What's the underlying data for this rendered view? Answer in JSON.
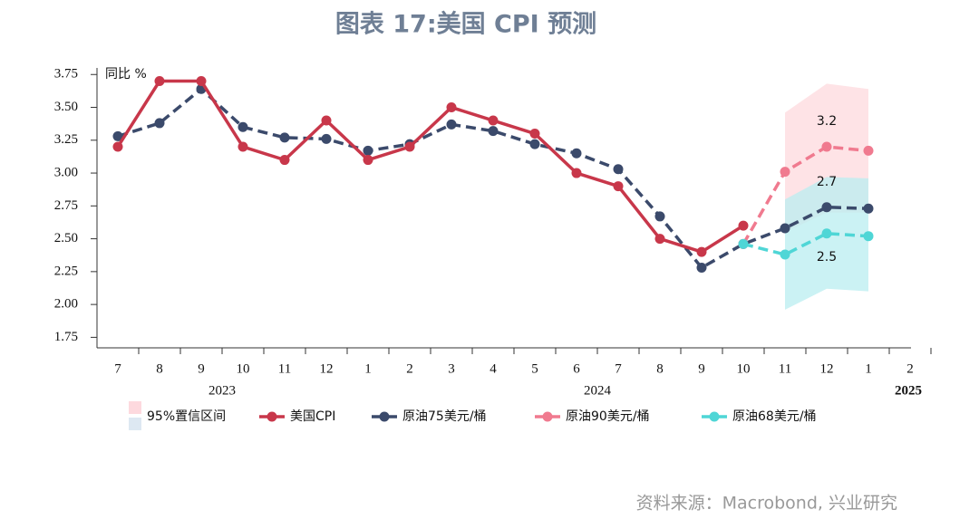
{
  "chart_data": {
    "type": "line",
    "title": "图表 17:美国 CPI 预测",
    "y_axis_label": "同比 %",
    "source": "资料来源：Macrobond, 兴业研究",
    "categories": [
      "7",
      "8",
      "9",
      "10",
      "11",
      "12",
      "1",
      "2",
      "3",
      "4",
      "5",
      "6",
      "7",
      "8",
      "9",
      "10",
      "11",
      "12",
      "1",
      "2"
    ],
    "groups": [
      {
        "label": "2023",
        "categories": 6
      },
      {
        "label": "2024",
        "categories": 12
      },
      {
        "label": "2025",
        "categories": 2
      }
    ],
    "ylim": [
      1.67,
      3.8
    ],
    "yticks": [
      {
        "value": 1.75,
        "label": "1.75"
      },
      {
        "value": 2,
        "label": "2.00"
      },
      {
        "value": 2.25,
        "label": "2.25"
      },
      {
        "value": 2.5,
        "label": "2.50"
      },
      {
        "value": 2.75,
        "label": "2.75"
      },
      {
        "value": 3,
        "label": "3.00"
      },
      {
        "value": 3.25,
        "label": "3.25"
      },
      {
        "value": 3.5,
        "label": "3.50"
      },
      {
        "value": 3.75,
        "label": "3.75"
      }
    ],
    "band_legend": "95%置信区间",
    "bands": [
      {
        "color": "#fdd9de",
        "lower": [
          null,
          null,
          null,
          null,
          null,
          null,
          null,
          null,
          null,
          null,
          null,
          null,
          null,
          null,
          null,
          null,
          2.55,
          2.7,
          2.7,
          null
        ],
        "upper": [
          null,
          null,
          null,
          null,
          null,
          null,
          null,
          null,
          null,
          null,
          null,
          null,
          null,
          null,
          null,
          null,
          3.46,
          3.68,
          3.64,
          null
        ]
      },
      {
        "color": "#b9eef0",
        "lower": [
          null,
          null,
          null,
          null,
          null,
          null,
          null,
          null,
          null,
          null,
          null,
          null,
          null,
          null,
          null,
          null,
          1.96,
          2.12,
          2.1,
          null
        ],
        "upper": [
          null,
          null,
          null,
          null,
          null,
          null,
          null,
          null,
          null,
          null,
          null,
          null,
          null,
          null,
          null,
          null,
          2.8,
          2.97,
          2.96,
          null
        ]
      }
    ],
    "series": [
      {
        "name": "美国CPI",
        "color": "#c8374a",
        "dashed": false,
        "values": [
          3.2,
          3.7,
          3.7,
          3.2,
          3.1,
          3.4,
          3.1,
          3.2,
          3.5,
          3.4,
          3.3,
          3.0,
          2.9,
          2.5,
          2.4,
          2.6,
          null,
          null,
          null,
          null
        ]
      },
      {
        "name": "原油75美元/桶",
        "color": "#3b4a6b",
        "dashed": true,
        "values": [
          3.28,
          3.38,
          3.64,
          3.35,
          3.27,
          3.26,
          3.17,
          3.22,
          3.37,
          3.32,
          3.22,
          3.15,
          3.03,
          2.67,
          2.28,
          2.46,
          2.58,
          2.74,
          2.73,
          null
        ],
        "value_labels": [
          null,
          null,
          null,
          null,
          null,
          null,
          null,
          null,
          null,
          null,
          null,
          null,
          null,
          null,
          null,
          null,
          null,
          "2.7",
          null,
          null
        ]
      },
      {
        "name": "原油90美元/桶",
        "color": "#f07a8f",
        "dashed": true,
        "values": [
          null,
          null,
          null,
          null,
          null,
          null,
          null,
          null,
          null,
          null,
          null,
          null,
          null,
          null,
          null,
          2.46,
          3.01,
          3.2,
          3.17,
          null
        ],
        "value_labels": [
          null,
          null,
          null,
          null,
          null,
          null,
          null,
          null,
          null,
          null,
          null,
          null,
          null,
          null,
          null,
          null,
          null,
          "3.2",
          null,
          null
        ]
      },
      {
        "name": "原油68美元/桶",
        "color": "#4fd6d6",
        "dashed": true,
        "values": [
          null,
          null,
          null,
          null,
          null,
          null,
          null,
          null,
          null,
          null,
          null,
          null,
          null,
          null,
          null,
          2.46,
          2.38,
          2.54,
          2.52,
          null
        ],
        "value_labels": [
          null,
          null,
          null,
          null,
          null,
          null,
          null,
          null,
          null,
          null,
          null,
          null,
          null,
          null,
          null,
          null,
          null,
          "2.5",
          null,
          null
        ]
      }
    ]
  }
}
